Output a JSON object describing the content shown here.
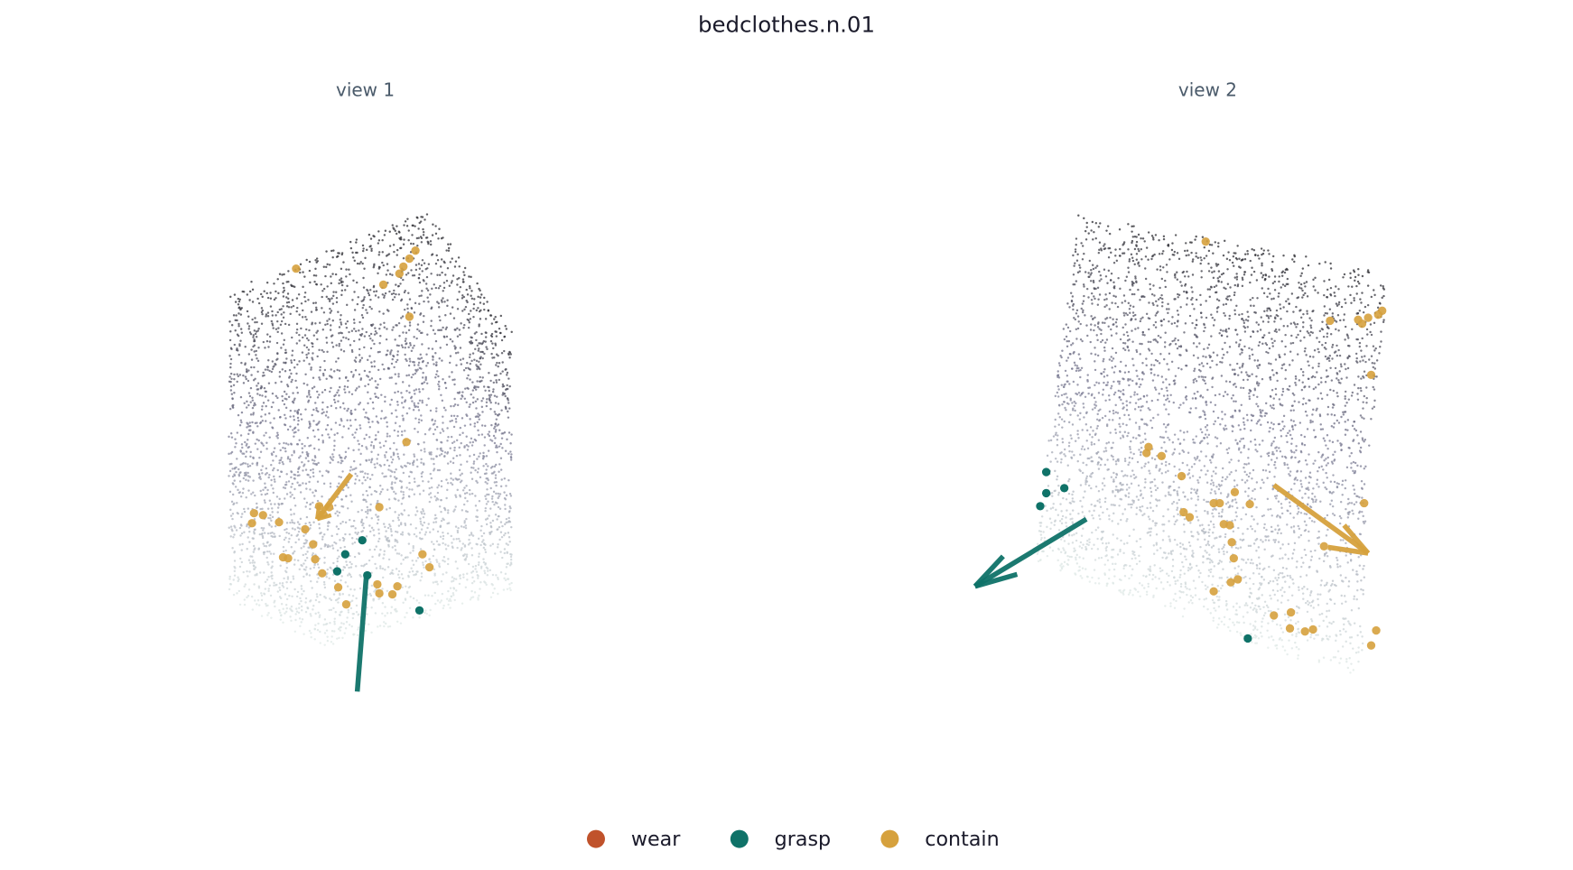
{
  "title": "bedclothes.n.01",
  "views": [
    {
      "title": "view 1"
    },
    {
      "title": "view 2"
    }
  ],
  "legend": [
    {
      "label": "wear",
      "color": "#c0522b"
    },
    {
      "label": "grasp",
      "color": "#0f7268"
    },
    {
      "label": "contain",
      "color": "#d6a13d"
    }
  ]
}
